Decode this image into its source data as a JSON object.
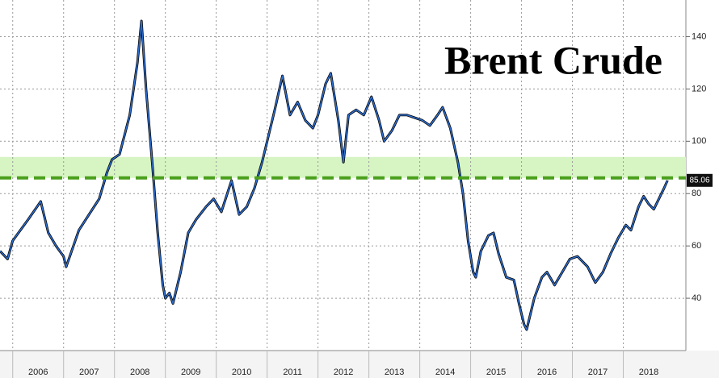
{
  "chart_data": {
    "type": "line",
    "title": "Brent Crude",
    "x": [
      2005.75,
      2005.9,
      2006.0,
      2006.3,
      2006.55,
      2006.7,
      2006.85,
      2007.0,
      2007.05,
      2007.3,
      2007.5,
      2007.7,
      2007.85,
      2007.95,
      2008.1,
      2008.3,
      2008.45,
      2008.53,
      2008.62,
      2008.75,
      2008.85,
      2008.95,
      2009.0,
      2009.08,
      2009.15,
      2009.3,
      2009.45,
      2009.6,
      2009.8,
      2009.95,
      2010.1,
      2010.3,
      2010.45,
      2010.6,
      2010.75,
      2010.9,
      2011.0,
      2011.15,
      2011.3,
      2011.45,
      2011.6,
      2011.75,
      2011.9,
      2012.0,
      2012.15,
      2012.25,
      2012.4,
      2012.5,
      2012.6,
      2012.75,
      2012.9,
      2013.05,
      2013.2,
      2013.3,
      2013.45,
      2013.6,
      2013.75,
      2013.9,
      2014.05,
      2014.2,
      2014.35,
      2014.45,
      2014.6,
      2014.75,
      2014.85,
      2014.95,
      2015.05,
      2015.1,
      2015.2,
      2015.35,
      2015.45,
      2015.55,
      2015.7,
      2015.85,
      2015.95,
      2016.05,
      2016.1,
      2016.25,
      2016.4,
      2016.5,
      2016.65,
      2016.8,
      2016.95,
      2017.1,
      2017.3,
      2017.45,
      2017.6,
      2017.75,
      2017.9,
      2018.05,
      2018.15,
      2018.3,
      2018.4,
      2018.5,
      2018.6,
      2018.7,
      2018.8,
      2018.87
    ],
    "values": [
      58,
      55,
      62,
      70,
      77,
      65,
      60,
      56,
      52,
      66,
      72,
      78,
      88,
      93,
      95,
      110,
      130,
      146,
      120,
      90,
      65,
      45,
      40,
      42,
      38,
      50,
      65,
      70,
      75,
      78,
      73,
      85,
      72,
      75,
      82,
      92,
      100,
      112,
      125,
      110,
      115,
      108,
      105,
      110,
      122,
      126,
      108,
      92,
      110,
      112,
      110,
      117,
      108,
      100,
      104,
      110,
      110,
      109,
      108,
      106,
      110,
      113,
      105,
      92,
      80,
      62,
      50,
      48,
      58,
      64,
      65,
      57,
      48,
      47,
      38,
      30,
      28,
      40,
      48,
      50,
      45,
      50,
      55,
      56,
      52,
      46,
      50,
      57,
      63,
      68,
      66,
      75,
      79,
      76,
      74,
      78,
      82,
      85.06
    ],
    "color": "#2f6fcf",
    "xlim": [
      2005.75,
      2019.23
    ],
    "xticks": [
      2006,
      2007,
      2008,
      2009,
      2010,
      2011,
      2012,
      2013,
      2014,
      2015,
      2016,
      2017,
      2018
    ],
    "ylim": [
      20,
      154
    ],
    "yticks": [
      40,
      60,
      80,
      100,
      120,
      140
    ],
    "grid": true,
    "reference_line": 86,
    "reference_color": "#4aa01c",
    "band": [
      86,
      94
    ],
    "band_color": "#d6f5c2"
  }
}
